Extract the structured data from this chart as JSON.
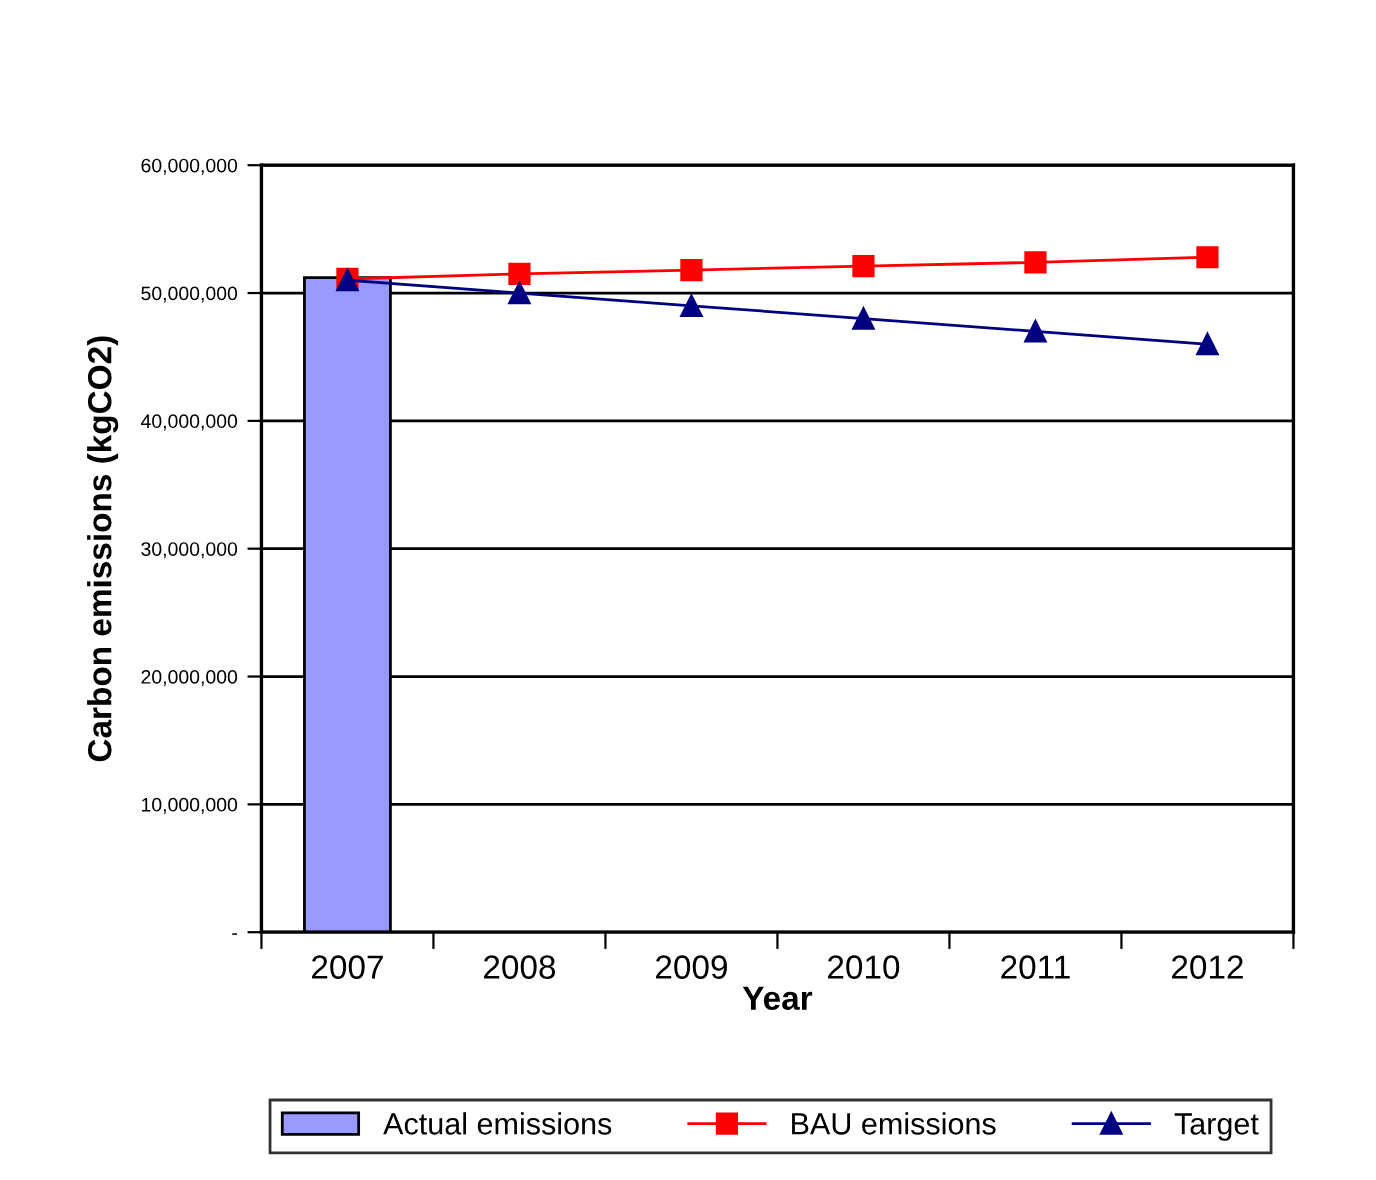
{
  "chart_data": {
    "type": "bar",
    "xlabel": "Year",
    "ylabel": "Carbon emissions (kgCO2)",
    "categories": [
      "2007",
      "2008",
      "2009",
      "2010",
      "2011",
      "2012"
    ],
    "series": [
      {
        "name": "Actual emissions",
        "color": "#9999ff",
        "values": [
          51200000,
          null,
          null,
          null,
          null,
          null
        ]
      },
      {
        "name": "BAU emissions",
        "type": "line",
        "color": "#ff0000",
        "marker": "square",
        "values": [
          51100000,
          51500000,
          51800000,
          52100000,
          52400000,
          52800000
        ]
      },
      {
        "name": "Target",
        "type": "line",
        "color": "#000080",
        "marker": "triangle",
        "values": [
          51000000,
          50000000,
          49000000,
          48000000,
          47000000,
          46000000
        ]
      }
    ],
    "ylim": [
      0,
      60000000
    ],
    "yticks": [
      {
        "value": 0,
        "label": "-"
      },
      {
        "value": 10000000,
        "label": "10,000,000"
      },
      {
        "value": 20000000,
        "label": "20,000,000"
      },
      {
        "value": 30000000,
        "label": "30,000,000"
      },
      {
        "value": 40000000,
        "label": "40,000,000"
      },
      {
        "value": 50000000,
        "label": "50,000,000"
      },
      {
        "value": 60000000,
        "label": "60,000,000"
      }
    ],
    "grid": "y",
    "legend": "bottom"
  }
}
